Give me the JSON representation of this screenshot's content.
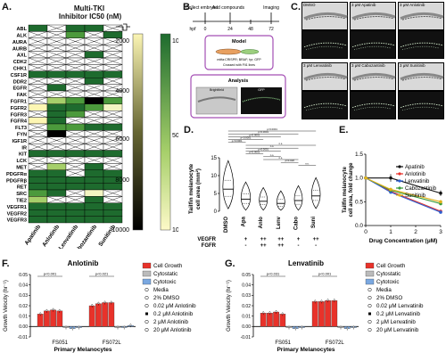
{
  "panels": {
    "A": "A.",
    "B": "B.",
    "C": "C.",
    "D": "D.",
    "E": "E.",
    "F": "F.",
    "G": "G."
  },
  "heatmap": {
    "title_line1": "Multi-TKI",
    "title_line2": "Inhibitor IC50 (nM)",
    "rows": [
      "ABL",
      "ALK",
      "AURA",
      "AURB",
      "AXL",
      "CDK2",
      "CHK1",
      "CSF1R",
      "DDR2",
      "EGFR",
      "FAK",
      "FGFR1",
      "FGFR2",
      "FGFR3",
      "FGFR4",
      "FLT3",
      "FYN",
      "IGF1R",
      "IR",
      "KIT",
      "LCK",
      "MET",
      "PDGFRα",
      "PDGFRβ",
      "RET",
      "SRC",
      "TIE2",
      "VEGFR1",
      "VEGFR2",
      "VEGFR3"
    ],
    "cols": [
      "Apatinib",
      "Anlotinib",
      "Lenvatinib",
      "Cabozantinib",
      "Sunitinib"
    ],
    "colorbar_ticks": [
      "2000",
      "4000",
      "6000",
      "8000",
      "10000"
    ],
    "colorbar_ticks_right": [
      "1000",
      "500",
      "100"
    ],
    "colors": {
      "dark_green": "#1e6b2e",
      "green": "#4c9a3c",
      "light_green": "#a6cf6a",
      "pale": "#f3f4c2",
      "yellow": "#fdf6b3",
      "black": "#000000",
      "white": "#ffffff"
    }
  },
  "panelB": {
    "hpf": "hpf",
    "timeline_labels": [
      "Collect embryos",
      "Add compounds",
      "Imaging"
    ],
    "timeline_ticks": [
      "0",
      "24",
      "48",
      "72"
    ],
    "model_title": "Model",
    "model_sub": "mitfa:CRISPR; BRAF; tyr; GFP",
    "model_sub2": "Crossed with Fli1 lines",
    "analysis_title": "Analysis",
    "analysis_bf": "Brightfield",
    "analysis_gfp": "GFP"
  },
  "panelC": {
    "labels": [
      "DMSO",
      "3 μM Apatinib",
      "3 μM Anlotinib",
      "3 μM Lenvatinib",
      "3 μM Cabozantinib",
      "3 μM Sunitinib"
    ]
  },
  "panelD": {
    "ylabel_line1": "Tailfin melanocyte",
    "ylabel_line2": "cell area (mm²)",
    "yticks": [
      "0",
      "5",
      "10",
      "15"
    ],
    "categories": [
      "DMSO",
      "Apa",
      "Anlo",
      "Lenv",
      "Cabo",
      "Suni"
    ],
    "row1_label": "VEGFR",
    "row2_label": "FGFR",
    "row1": [
      "",
      "+",
      "++",
      "++",
      "+",
      "++"
    ],
    "row2": [
      "",
      "-",
      "++",
      "++",
      "-",
      "-"
    ],
    "pvalues": [
      "p<0.0001",
      "p<0.0001",
      "p<0.0001",
      "p<0.0001",
      "p<0.0001",
      "n.s.",
      "n.s.",
      "p<0.0001",
      "p<0.0001",
      "n.s.",
      "n.s.",
      "p=0.018",
      "n.s."
    ]
  },
  "chart_data": [
    {
      "type": "scatter",
      "panel": "D",
      "categories": [
        "DMSO",
        "Apa",
        "Anlo",
        "Lenv",
        "Cabo",
        "Suni"
      ],
      "values": [
        6.2,
        3.4,
        2.8,
        2.2,
        3.0,
        4.3
      ],
      "ylabel": "Tailfin melanocyte cell area (mm²)",
      "ylim": [
        0,
        15
      ]
    },
    {
      "type": "line",
      "panel": "E",
      "xlabel": "Drug Concentration (μM)",
      "ylabel": "Tailfin melanocyte cell area, fold change",
      "x": [
        0,
        1,
        3
      ],
      "xticks": [
        "0",
        "1",
        "2",
        "3"
      ],
      "yticks": [
        "0.0",
        "0.5",
        "1.0",
        "1.5"
      ],
      "ylim": [
        0,
        1.5
      ],
      "series": [
        {
          "name": "Apatinib",
          "values": [
            1.0,
            1.0,
            0.68
          ],
          "color": "#111111"
        },
        {
          "name": "Anlotinib",
          "values": [
            1.0,
            0.72,
            0.3
          ],
          "color": "#e8322a"
        },
        {
          "name": "Lenvatinib",
          "values": [
            1.0,
            0.7,
            0.28
          ],
          "color": "#2f5fd0"
        },
        {
          "name": "Cabozantinib",
          "values": [
            1.0,
            0.74,
            0.46
          ],
          "color": "#3a9a3a"
        },
        {
          "name": "Sunitinib",
          "values": [
            1.0,
            0.76,
            0.5
          ],
          "color": "#e0b21c"
        }
      ]
    },
    {
      "type": "bar",
      "panel": "F",
      "title": "Anlotinib",
      "xlabel": "Primary Melanocytes",
      "ylabel": "Growth Velocity (hr⁻¹)",
      "categories": [
        "FS051",
        "FS072L"
      ],
      "yticks": [
        "-0.01",
        "0.00",
        "0.01",
        "0.02",
        "0.03",
        "0.04",
        "0.05"
      ],
      "ylim": [
        -0.01,
        0.05
      ],
      "groups": [
        {
          "label": "FS051",
          "values": [
            0.012,
            0.015,
            0.016,
            0.015,
            -0.001,
            -0.002,
            -0.001
          ]
        },
        {
          "label": "FS072L",
          "values": [
            0.02,
            0.022,
            0.023,
            0.023,
            -0.001,
            -0.001,
            0.001
          ]
        }
      ],
      "pvalues": [
        "p<0.001",
        "p<0.021"
      ]
    },
    {
      "type": "bar",
      "panel": "G",
      "title": "Lenvatinib",
      "xlabel": "Primary Melanocytes",
      "ylabel": "Growth Velocity (hr⁻¹)",
      "categories": [
        "FS051",
        "FS072L"
      ],
      "yticks": [
        "-0.01",
        "0.00",
        "0.01",
        "0.02",
        "0.03",
        "0.04",
        "0.05"
      ],
      "ylim": [
        -0.01,
        0.05
      ],
      "groups": [
        {
          "label": "FS051",
          "values": [
            0.013,
            0.013,
            0.014,
            0.012,
            -0.001,
            -0.002,
            -0.001
          ]
        },
        {
          "label": "FS072L",
          "values": [
            0.024,
            0.024,
            0.025,
            0.025,
            -0.001,
            -0.002,
            -0.001
          ]
        }
      ],
      "pvalues": [
        "p<0.031",
        "p<0.001"
      ]
    }
  ],
  "barLegend": {
    "items": [
      "Cell Growth",
      "Cytostatic",
      "Cytotoxic",
      "Media",
      "2% DMSO"
    ],
    "anlotinib_items": [
      "0.02 μM Anlotinib",
      "0.2 μM Anlotinib",
      "2 μM Anlotinib",
      "20 μM Anlotinib"
    ],
    "lenvatinib_items": [
      "0.02 μM Lenvatinib",
      "0.2 μM Lenvatinib",
      "2 μM Lenvatinib",
      "20 μM Lenvatinib"
    ],
    "colors": {
      "growth": "#e8322a",
      "cytostatic": "#bbbbbb",
      "cytotoxic": "#7aa8e0"
    }
  }
}
